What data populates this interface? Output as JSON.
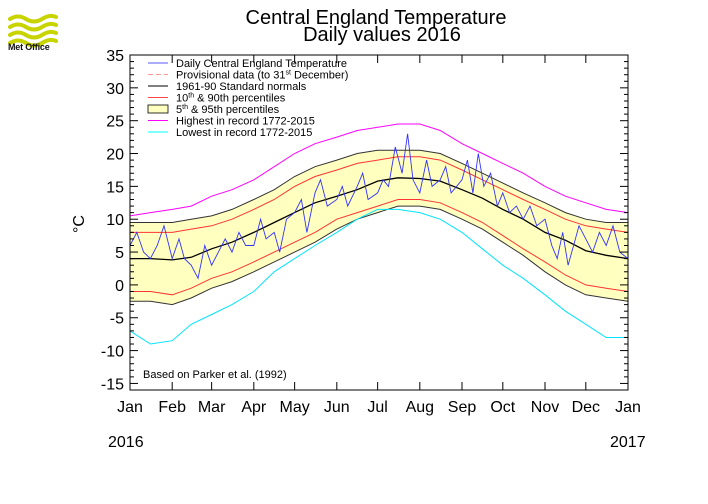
{
  "logo": {
    "name": "met-office-logo",
    "label": "Met Office"
  },
  "chart_data": {
    "type": "line",
    "title": "Central England Temperature",
    "subtitle": "Daily values 2016",
    "ylabel": "°C",
    "ylim": [
      -16,
      35
    ],
    "yticks": [
      35,
      30,
      25,
      20,
      15,
      10,
      5,
      0,
      -5,
      -10,
      -15
    ],
    "xlim": [
      0,
      366
    ],
    "x_categories": [
      "Jan",
      "Feb",
      "Mar",
      "Apr",
      "May",
      "Jun",
      "Jul",
      "Aug",
      "Sep",
      "Oct",
      "Nov",
      "Dec",
      "Jan"
    ],
    "x_category_days": [
      0,
      31,
      60,
      91,
      121,
      152,
      182,
      213,
      244,
      274,
      305,
      335,
      366
    ],
    "year_labels": {
      "start": "2016",
      "end": "2017"
    },
    "annotation": "Based on Parker et al. (1992)",
    "legend_position": "top-left",
    "legend": [
      {
        "label_main": "Daily Central England Temperature",
        "sup": "",
        "label_rest": "",
        "color": "#5a5aff",
        "style": "line"
      },
      {
        "label_main": "Provisional data (to 31",
        "sup": "st",
        "label_rest": " December)",
        "color": "#ff9999",
        "style": "dash"
      },
      {
        "label_main": "1961-90 Standard normals",
        "sup": "",
        "label_rest": "",
        "color": "#000000",
        "style": "line"
      },
      {
        "label_main": "10",
        "sup": "th",
        "label_rest": " & 90th percentiles",
        "color": "#ff4444",
        "style": "line"
      },
      {
        "label_main": "5",
        "sup": "th",
        "label_rest": " & 95th percentiles",
        "color": "#ffffc0",
        "style": "box"
      },
      {
        "label_main": "Highest in record 1772-2015",
        "sup": "",
        "label_rest": "",
        "color": "#ff00ff",
        "style": "line"
      },
      {
        "label_main": "Lowest in record 1772-2015",
        "sup": "",
        "label_rest": "",
        "color": "#00ffff",
        "style": "line"
      }
    ],
    "series": [
      {
        "name": "1961-90 Standard normals",
        "x": [
          0,
          15,
          31,
          45,
          60,
          75,
          91,
          106,
          121,
          136,
          152,
          167,
          182,
          197,
          213,
          228,
          244,
          259,
          274,
          289,
          305,
          320,
          335,
          350,
          366
        ],
        "y": [
          4,
          4,
          3.8,
          4.2,
          5.5,
          6.5,
          8,
          9.5,
          11,
          12.5,
          13.5,
          14.5,
          15.8,
          16.3,
          16.2,
          15.8,
          14.5,
          13.2,
          11.5,
          10,
          8,
          6.8,
          5.2,
          4.5,
          4
        ]
      },
      {
        "name": "10th percentile",
        "x": [
          0,
          15,
          31,
          45,
          60,
          75,
          91,
          106,
          121,
          136,
          152,
          167,
          182,
          197,
          213,
          228,
          244,
          259,
          274,
          289,
          305,
          320,
          335,
          350,
          366
        ],
        "y": [
          -1,
          -1,
          -1.5,
          -0.5,
          1,
          2,
          3.5,
          5,
          6.5,
          8,
          10,
          11,
          12,
          13,
          13,
          12.5,
          11,
          9.5,
          7.5,
          5.5,
          3.5,
          1.5,
          0,
          -0.5,
          -1
        ]
      },
      {
        "name": "90th percentile",
        "x": [
          0,
          15,
          31,
          45,
          60,
          75,
          91,
          106,
          121,
          136,
          152,
          167,
          182,
          197,
          213,
          228,
          244,
          259,
          274,
          289,
          305,
          320,
          335,
          350,
          366
        ],
        "y": [
          8,
          8,
          8,
          8.5,
          9,
          10,
          11.5,
          13,
          15,
          16.5,
          17.5,
          18.5,
          19,
          19.5,
          19.5,
          19,
          17.5,
          16,
          14.5,
          13,
          11.5,
          10,
          9,
          8.5,
          8
        ]
      },
      {
        "name": "5th percentile",
        "x": [
          0,
          15,
          31,
          45,
          60,
          75,
          91,
          106,
          121,
          136,
          152,
          167,
          182,
          197,
          213,
          228,
          244,
          259,
          274,
          289,
          305,
          320,
          335,
          350,
          366
        ],
        "y": [
          -2.5,
          -2.5,
          -3,
          -2,
          -0.5,
          0.5,
          2,
          3.5,
          5,
          6.5,
          8.5,
          10,
          11,
          12,
          12,
          11.5,
          10,
          8.5,
          6.5,
          4.5,
          2,
          0,
          -1.5,
          -2,
          -2.5
        ]
      },
      {
        "name": "95th percentile",
        "x": [
          0,
          15,
          31,
          45,
          60,
          75,
          91,
          106,
          121,
          136,
          152,
          167,
          182,
          197,
          213,
          228,
          244,
          259,
          274,
          289,
          305,
          320,
          335,
          350,
          366
        ],
        "y": [
          9.5,
          9.5,
          9.5,
          10,
          10.5,
          11.5,
          13,
          14.5,
          16.5,
          18,
          19,
          20,
          20.5,
          20.5,
          20.5,
          20,
          18.5,
          17,
          15.5,
          14,
          12.5,
          11,
          10,
          9.5,
          9.5
        ]
      },
      {
        "name": "Highest in record 1772-2015",
        "x": [
          0,
          15,
          31,
          45,
          60,
          75,
          91,
          106,
          121,
          136,
          152,
          167,
          182,
          197,
          213,
          228,
          244,
          259,
          274,
          289,
          305,
          320,
          335,
          350,
          366
        ],
        "y": [
          10.5,
          11,
          11.5,
          12,
          13.5,
          14.5,
          16,
          18,
          20,
          21.5,
          22.5,
          23.5,
          24,
          24.5,
          24.5,
          23.5,
          21.5,
          20,
          18.5,
          17,
          15,
          13.5,
          12.5,
          11.5,
          11
        ]
      },
      {
        "name": "Lowest in record 1772-2015",
        "x": [
          0,
          15,
          31,
          45,
          60,
          75,
          91,
          106,
          121,
          136,
          152,
          167,
          182,
          197,
          213,
          228,
          244,
          259,
          274,
          289,
          305,
          320,
          335,
          350,
          366
        ],
        "y": [
          -7,
          -9,
          -8.5,
          -6,
          -4.5,
          -3,
          -1,
          2,
          4,
          6,
          8,
          10,
          11.5,
          11.5,
          11,
          10,
          8,
          5.5,
          3,
          1,
          -1.5,
          -4,
          -6,
          -8,
          -8
        ]
      },
      {
        "name": "Daily Central England Temperature",
        "x": [
          0,
          5,
          10,
          15,
          20,
          25,
          31,
          36,
          40,
          45,
          50,
          55,
          60,
          65,
          70,
          75,
          80,
          85,
          91,
          96,
          100,
          106,
          110,
          115,
          121,
          126,
          130,
          136,
          140,
          145,
          152,
          156,
          160,
          167,
          171,
          175,
          182,
          186,
          190,
          195,
          200,
          204,
          208,
          213,
          218,
          222,
          228,
          232,
          236,
          240,
          244,
          248,
          252,
          256,
          260,
          265,
          270,
          274,
          279,
          284,
          289,
          294,
          299,
          305,
          310,
          314,
          318,
          322,
          326,
          330,
          335,
          340,
          345,
          350,
          355,
          360,
          366
        ],
        "y": [
          6,
          8,
          5,
          4,
          6,
          9,
          4,
          7,
          4,
          3,
          1,
          6,
          3,
          5,
          7,
          5,
          8,
          6,
          6,
          10,
          7,
          8,
          5,
          10,
          11,
          13,
          8,
          14,
          16,
          12,
          13,
          15,
          12,
          15,
          17,
          13,
          14,
          16,
          15,
          21,
          17,
          23,
          16,
          14,
          19,
          15,
          16,
          18,
          14,
          15,
          16,
          19,
          14,
          20,
          15,
          17,
          12,
          14,
          11,
          12,
          10,
          12,
          9,
          10,
          6,
          4,
          8,
          3,
          6,
          9,
          7,
          5,
          8,
          6,
          9,
          5,
          4
        ]
      }
    ]
  }
}
